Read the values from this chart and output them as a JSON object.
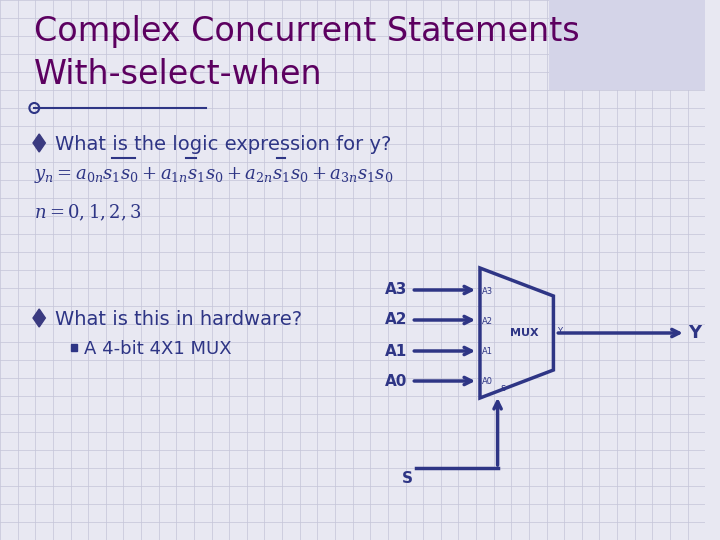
{
  "title_line1": "Complex Concurrent Statements",
  "title_line2": "With-select-when",
  "title_color": "#5C0060",
  "title_fontsize": 24,
  "bg_color": "#E8E8F2",
  "grid_color": "#C4C4D8",
  "bullet_color": "#3A3A80",
  "text_color": "#2E3585",
  "dark_blue": "#2E3585",
  "bullet1_text": "What is the logic expression for y?",
  "bullet2_text": "What is this in hardware?",
  "sub_bullet": "A 4-bit 4X1 MUX",
  "mux_label": "MUX",
  "output_label": "Y",
  "select_label": "S",
  "select_small": "s",
  "mux_inputs_big": [
    "A3",
    "A2",
    "A1",
    "A0"
  ],
  "mux_inputs_small": [
    "A3",
    "A2",
    "A1",
    "A0"
  ]
}
